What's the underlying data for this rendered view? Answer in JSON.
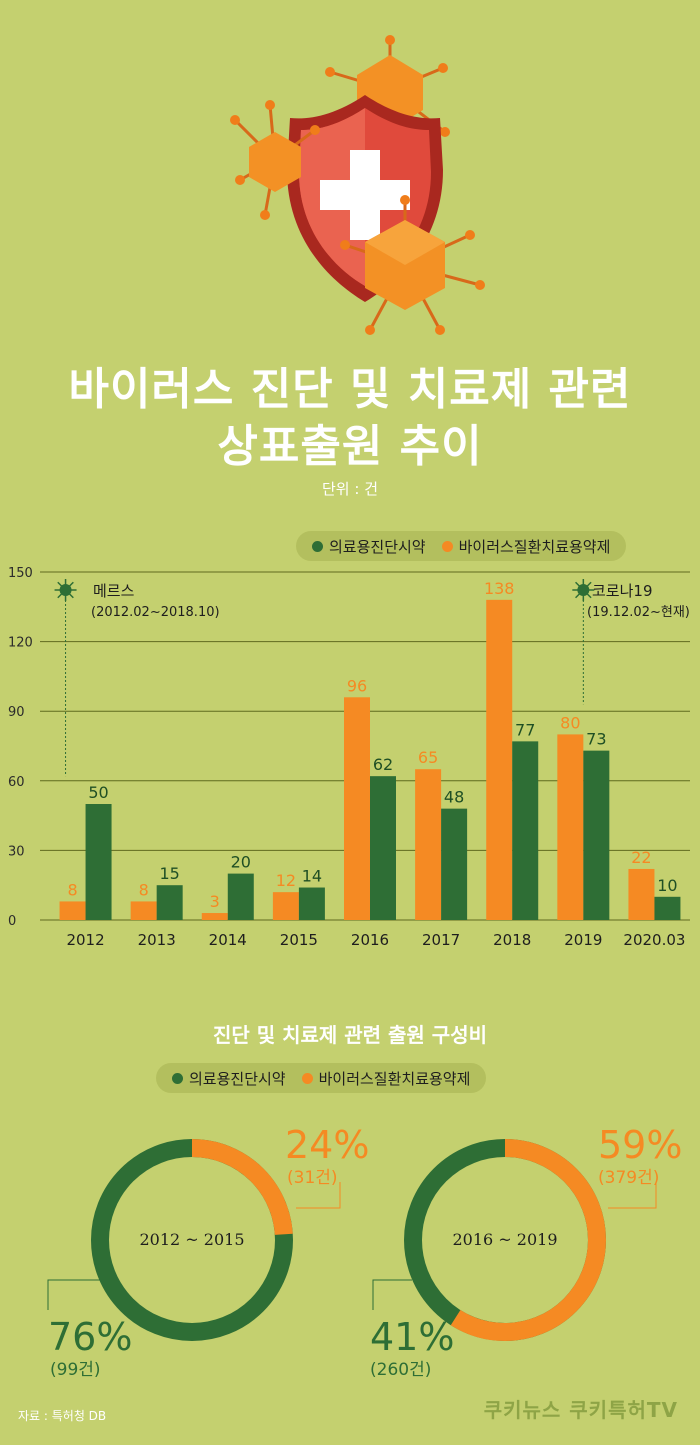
{
  "header": {
    "title_line1": "바이러스 진단 및 치료제 관련",
    "title_line2": "상표출원 추이",
    "unit": "단위 : 건"
  },
  "colors": {
    "background": "#c4d06f",
    "green": "#2e6e35",
    "orange": "#f58a23",
    "grid": "#5f6a1f"
  },
  "legend": {
    "series1": "의료용진단시약",
    "series2": "바이러스질환치료용약제"
  },
  "annotations": {
    "mers_label": "메르스",
    "mers_period": "(2012.02~2018.10)",
    "corona_label": "코로나19",
    "corona_period": "(19.12.02~현재)"
  },
  "chart_data": [
    {
      "type": "bar",
      "categories": [
        "2012",
        "2013",
        "2014",
        "2015",
        "2016",
        "2017",
        "2018",
        "2019",
        "2020.03"
      ],
      "series": [
        {
          "name": "바이러스질환치료용약제",
          "color": "#f58a23",
          "values": [
            8,
            8,
            3,
            12,
            96,
            65,
            138,
            80,
            22
          ]
        },
        {
          "name": "의료용진단시약",
          "color": "#2e6e35",
          "values": [
            50,
            15,
            20,
            14,
            62,
            48,
            77,
            73,
            10
          ]
        }
      ],
      "ylim": [
        0,
        150
      ],
      "yticks": [
        "0",
        "30",
        "60",
        "90",
        "120",
        "150"
      ],
      "grid": true,
      "legend": "top-right"
    },
    {
      "type": "pie",
      "title": "진단 및 치료제 관련 출원 구성비",
      "center_label": "2012 ~ 2015",
      "slices": [
        {
          "name": "바이러스질환치료용약제",
          "percent": 24,
          "percent_label": "24%",
          "count_label": "(31건)",
          "color": "#f58a23"
        },
        {
          "name": "의료용진단시약",
          "percent": 76,
          "percent_label": "76%",
          "count_label": "(99건)",
          "color": "#2e6e35"
        }
      ]
    },
    {
      "type": "pie",
      "center_label": "2016 ~ 2019",
      "slices": [
        {
          "name": "바이러스질환치료용약제",
          "percent": 59,
          "percent_label": "59%",
          "count_label": "(379건)",
          "color": "#f58a23"
        },
        {
          "name": "의료용진단시약",
          "percent": 41,
          "percent_label": "41%",
          "count_label": "(260건)",
          "color": "#2e6e35"
        }
      ]
    }
  ],
  "footer": {
    "source": "자료 : 특허청 DB",
    "brand": "쿠키뉴스 쿠키특허TV"
  }
}
